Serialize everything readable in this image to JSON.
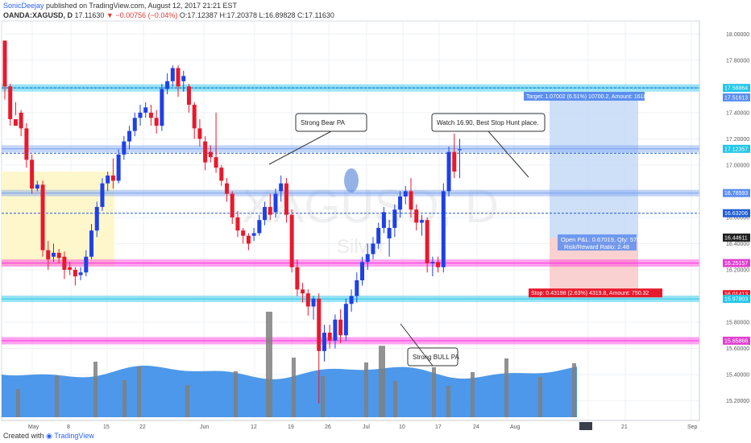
{
  "header": {
    "publisher": "SonicDeejay",
    "published_text": "published on TradingView.com, August 12, 2017 21:21 EST",
    "symbol": "OANDA:XAGUSD, D",
    "last": "17.11630",
    "change": "▼ −0.00756 (−0.04%)",
    "ohlc": "O:17.12387 H:17.20378 L:16.89828 C:17.11630"
  },
  "footer": {
    "created_with": "Created with",
    "brand": "TradingView"
  },
  "watermark": {
    "symbol": "XAGUSD, D",
    "name": "Silver"
  },
  "colors": {
    "up": "#1e40e6",
    "down": "#e8192c",
    "volume_up": "#3a8de8",
    "volume_down": "#7f7f7f",
    "resistance": "#20c6e8",
    "support": "#ff33dd",
    "zone": "#fff7cc",
    "target_box": "#c9dcf7",
    "stop_box": "#f9cccc"
  },
  "chart_data": {
    "type": "candlestick",
    "symbol": "OANDA:XAGUSD",
    "interval": "D",
    "ylim": [
      15.05,
      18.1
    ],
    "y_ticks": [
      "18.00000",
      "17.80000",
      "17.60000",
      "17.40000",
      "17.20000",
      "17.00000",
      "16.80000",
      "16.60000",
      "16.40000",
      "16.20000",
      "16.00000",
      "15.80000",
      "15.60000",
      "15.40000",
      "15.20000"
    ],
    "x_ticks": [
      "May",
      "8",
      "15",
      "22",
      "Jun",
      "12",
      "19",
      "26",
      "Jul",
      "10",
      "17",
      "24",
      "Aug",
      "14",
      "21",
      "Sep"
    ],
    "candles": [
      [
        17.95,
        17.85,
        17.6,
        17.5
      ],
      [
        17.6,
        17.62,
        17.35,
        17.3
      ],
      [
        17.35,
        17.48,
        17.3,
        17.38
      ],
      [
        17.4,
        17.42,
        17.28,
        17.22
      ],
      [
        17.28,
        17.32,
        17.04,
        16.98
      ],
      [
        17.04,
        17.08,
        16.82,
        16.78
      ],
      [
        16.82,
        16.88,
        16.85,
        16.8
      ],
      [
        16.85,
        16.88,
        16.35,
        16.3
      ],
      [
        16.35,
        16.42,
        16.28,
        16.2
      ],
      [
        16.3,
        16.4,
        16.33,
        16.26
      ],
      [
        16.33,
        16.36,
        16.29,
        16.25
      ],
      [
        16.3,
        16.34,
        16.2,
        16.13
      ],
      [
        16.22,
        16.26,
        16.2,
        16.16
      ],
      [
        16.2,
        16.22,
        16.15,
        16.08
      ],
      [
        16.16,
        16.22,
        16.18,
        16.12
      ],
      [
        16.18,
        16.35,
        16.3,
        16.15
      ],
      [
        16.3,
        16.55,
        16.5,
        16.28
      ],
      [
        16.5,
        16.72,
        16.68,
        16.45
      ],
      [
        16.68,
        16.9,
        16.86,
        16.65
      ],
      [
        16.86,
        16.95,
        16.92,
        16.8
      ],
      [
        16.92,
        17.05,
        16.88,
        16.82
      ],
      [
        16.88,
        17.12,
        17.08,
        16.86
      ],
      [
        17.08,
        17.22,
        17.18,
        17.04
      ],
      [
        17.18,
        17.3,
        17.26,
        17.12
      ],
      [
        17.26,
        17.4,
        17.36,
        17.22
      ],
      [
        17.36,
        17.46,
        17.4,
        17.3
      ],
      [
        17.4,
        17.48,
        17.44,
        17.36
      ],
      [
        17.4,
        17.46,
        17.36,
        17.3
      ],
      [
        17.36,
        17.42,
        17.3,
        17.24
      ],
      [
        17.3,
        17.62,
        17.58,
        17.26
      ],
      [
        17.58,
        17.7,
        17.64,
        17.54
      ],
      [
        17.64,
        17.76,
        17.74,
        17.6
      ],
      [
        17.74,
        17.76,
        17.6,
        17.52
      ],
      [
        17.64,
        17.72,
        17.68,
        17.56
      ],
      [
        17.6,
        17.62,
        17.46,
        17.4
      ],
      [
        17.46,
        17.48,
        17.28,
        17.2
      ],
      [
        17.28,
        17.35,
        17.2,
        17.14
      ],
      [
        17.18,
        17.22,
        17.02,
        16.96
      ],
      [
        17.1,
        17.15,
        17.06,
        17.02
      ],
      [
        17.06,
        17.4,
        16.98,
        16.94
      ],
      [
        16.98,
        17.0,
        16.88,
        16.84
      ],
      [
        16.86,
        16.9,
        16.78,
        16.72
      ],
      [
        16.78,
        16.8,
        16.6,
        16.55
      ],
      [
        16.6,
        16.65,
        16.5,
        16.45
      ],
      [
        16.5,
        16.52,
        16.46,
        16.4
      ],
      [
        16.46,
        16.48,
        16.4,
        16.35
      ],
      [
        16.46,
        16.52,
        16.48,
        16.42
      ],
      [
        16.48,
        16.62,
        16.58,
        16.46
      ],
      [
        16.58,
        16.72,
        16.68,
        16.54
      ],
      [
        16.68,
        16.78,
        16.62,
        16.58
      ],
      [
        16.64,
        16.82,
        16.78,
        16.6
      ],
      [
        16.8,
        16.92,
        16.86,
        16.72
      ],
      [
        16.86,
        16.9,
        16.62,
        16.56
      ],
      [
        16.62,
        16.66,
        16.22,
        16.18
      ],
      [
        16.22,
        16.28,
        16.05,
        16.0
      ],
      [
        16.05,
        16.1,
        16.02,
        15.95
      ],
      [
        16.02,
        16.05,
        15.92,
        15.85
      ],
      [
        15.92,
        16.0,
        15.98,
        15.82
      ],
      [
        15.98,
        16.02,
        15.58,
        15.18
      ],
      [
        15.58,
        15.78,
        15.72,
        15.5
      ],
      [
        15.72,
        15.78,
        15.66,
        15.6
      ],
      [
        15.66,
        15.86,
        15.82,
        15.6
      ],
      [
        15.82,
        15.9,
        15.7,
        15.64
      ],
      [
        15.7,
        15.98,
        15.94,
        15.66
      ],
      [
        15.94,
        16.05,
        16.0,
        15.88
      ],
      [
        16.0,
        16.18,
        16.12,
        15.95
      ],
      [
        16.12,
        16.3,
        16.26,
        16.08
      ],
      [
        16.26,
        16.4,
        16.32,
        16.2
      ],
      [
        16.32,
        16.45,
        16.4,
        16.28
      ],
      [
        16.4,
        16.56,
        16.52,
        16.36
      ],
      [
        16.52,
        16.68,
        16.64,
        16.48
      ],
      [
        16.44,
        16.58,
        16.52,
        16.3
      ],
      [
        16.52,
        16.7,
        16.66,
        16.45
      ],
      [
        16.66,
        16.8,
        16.76,
        16.6
      ],
      [
        16.76,
        16.84,
        16.8,
        16.7
      ],
      [
        16.8,
        16.9,
        16.66,
        16.6
      ],
      [
        16.66,
        16.7,
        16.56,
        16.5
      ],
      [
        16.56,
        16.62,
        16.58,
        16.46
      ],
      [
        16.58,
        16.6,
        16.25,
        16.18
      ],
      [
        16.25,
        16.3,
        16.26,
        16.15
      ],
      [
        16.26,
        16.3,
        16.22,
        16.18
      ],
      [
        16.22,
        16.86,
        16.8,
        16.18
      ],
      [
        16.8,
        17.14,
        17.1,
        16.76
      ],
      [
        17.1,
        17.24,
        16.95,
        16.9
      ],
      [
        17.12,
        17.2,
        17.12,
        16.9
      ]
    ],
    "volume_bars": 120,
    "levels": {
      "resistance_top": 17.58864,
      "resistance_mid": 17.12357,
      "pivot": 16.78593,
      "dashed_upper": 17.09,
      "dashed_lower": 16.63206,
      "support_mid": 16.25157,
      "support_low": 15.97803,
      "support_bottom": 15.65866
    },
    "price_labels": [
      {
        "value": "17.58864",
        "price": 17.58864,
        "color": "#20c6e8"
      },
      {
        "value": "17.51613",
        "price": 17.51613,
        "color": "#5b8ef0"
      },
      {
        "value": "17.12357",
        "price": 17.12357,
        "color": "#20c6e8"
      },
      {
        "value": "16.78593",
        "price": 16.78593,
        "color": "#5b8ef0"
      },
      {
        "value": "16.63206",
        "price": 16.63206,
        "color": "#1f5fd6"
      },
      {
        "value": "16.44611",
        "price": 16.44611,
        "color": "#222222"
      },
      {
        "value": "16.25157",
        "price": 16.25157,
        "color": "#e040d0"
      },
      {
        "value": "16.01413",
        "price": 16.01413,
        "color": "#e8192c"
      },
      {
        "value": "15.97803",
        "price": 15.97803,
        "color": "#20c6e8"
      },
      {
        "value": "15.65866",
        "price": 15.65866,
        "color": "#e040d0"
      }
    ],
    "annotations": [
      {
        "text": "Strong Bear PA"
      },
      {
        "text": "Watch 16.90, Best Stop Hunt place."
      },
      {
        "text": "Strong BULL PA"
      }
    ],
    "position": {
      "target_label": "Target: 1.07002 (6.51%) 10700.2, Amount: 1618.47",
      "pnl_label": "Open P&L: 0.67019, Qty: 578",
      "rr_label": "Risk/Reward Ratio: 2.48",
      "stop_label": "Stop: 0.43198 (2.63%) 4319.8, Amount: 750.32",
      "entry": 16.44611,
      "target": 17.51613,
      "stop": 16.01413
    }
  }
}
